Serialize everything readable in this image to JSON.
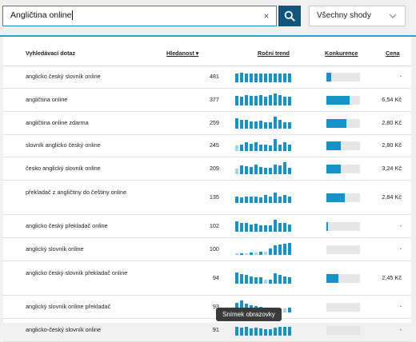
{
  "search": {
    "value": "Angličtina online",
    "clear_icon": "×"
  },
  "match_select": {
    "value": "Všechny shody"
  },
  "table": {
    "headers": {
      "keyword": "Vyhledávací dotaz",
      "volume": "Hledanost ▾",
      "trend": "Roční trend",
      "competition": "Konkurence",
      "price": "Cena"
    },
    "rows": [
      {
        "keyword": "anglicko český slovník online",
        "volume": "481",
        "price": "-",
        "competition": 0.15,
        "trend": [
          0.75,
          0.8,
          0.75,
          0.75,
          0.75,
          0.75,
          0.7,
          0.7,
          0.75,
          0.75,
          0.75,
          0.7
        ]
      },
      {
        "keyword": "angličtina online",
        "volume": "377",
        "price": "6,54 Kč",
        "competition": 0.7,
        "trend": [
          0.8,
          0.75,
          0.85,
          0.8,
          0.8,
          0.85,
          0.75,
          0.85,
          1,
          0.85,
          0.75,
          0.7
        ]
      },
      {
        "keyword": "angličtina online zdarma",
        "volume": "259",
        "price": "2,80 Kč",
        "competition": 0.6,
        "trend": [
          0.85,
          0.7,
          0.75,
          0.6,
          0.6,
          0.65,
          0.55,
          0.55,
          1,
          0.75,
          0.55,
          0.5
        ]
      },
      {
        "keyword": "slovník anglicko český online",
        "volume": "245",
        "price": "2,80 Kč",
        "competition": 0.42,
        "trend": [
          0.45,
          0.55,
          0.7,
          0.6,
          0.7,
          0.55,
          0.5,
          0.45,
          1,
          0.55,
          0.7,
          0.55
        ]
      },
      {
        "keyword": "česko anglický slovník online",
        "volume": "209",
        "price": "3,24 Kč",
        "competition": 0.42,
        "trend": [
          0.45,
          0.75,
          0.65,
          0.6,
          0.8,
          0.6,
          0.5,
          0.55,
          0.8,
          0.7,
          1,
          0.55
        ]
      },
      {
        "keyword": "překladač z angličtiny do češtiny online",
        "volume": "135",
        "price": "2,84 Kč",
        "competition": 0.55,
        "trend": [
          0.5,
          0.45,
          0.55,
          0.55,
          0.55,
          0.45,
          0.65,
          0.5,
          0.85,
          0.55,
          0.65,
          0.55
        ]
      },
      {
        "keyword": "anglicko český překladač online",
        "volume": "102",
        "price": "-",
        "competition": 0.05,
        "trend": [
          0.85,
          0.75,
          0.75,
          0.6,
          0.65,
          0.55,
          0.55,
          0.55,
          1,
          0.7,
          0.75,
          0.6
        ]
      },
      {
        "keyword": "anglický slovník online",
        "volume": "100",
        "price": "-",
        "competition": 0,
        "trend": [
          0.15,
          0.15,
          0.15,
          0.2,
          0.2,
          0.25,
          0.25,
          0.5,
          0.8,
          0.85,
          0.9,
          1
        ]
      },
      {
        "keyword": "anglicko český slovník překladač online",
        "volume": "94",
        "price": "2,45 Kč",
        "competition": 0.35,
        "trend": [
          0.9,
          0.8,
          0.75,
          0.6,
          0.55,
          0.5,
          0.35,
          0.3,
          0.85,
          0.75,
          0.6,
          0.55
        ]
      },
      {
        "keyword": "anglický slovník online překladač",
        "volume": "93",
        "price": "-",
        "competition": 0,
        "trend": [
          0.8,
          1,
          0.75,
          0.6,
          0.5,
          0.45,
          0.35,
          0.3,
          0.25,
          0.3,
          0.35,
          0.4
        ]
      },
      {
        "keyword": "anglicko-český slovník online",
        "volume": "91",
        "price": "-",
        "competition": 0,
        "trend": [
          0.7,
          0.65,
          0.7,
          0.6,
          0.65,
          0.6,
          0.55,
          0.55,
          0.65,
          0.7,
          0.75,
          0.75
        ]
      }
    ]
  },
  "tooltip": {
    "text": "Snímek obrazovky"
  },
  "colors": {
    "accent": "#1592c8",
    "dark_accent": "#11557a",
    "trend_pale": "#a8d3ea",
    "rule": "#2b9fd6"
  }
}
